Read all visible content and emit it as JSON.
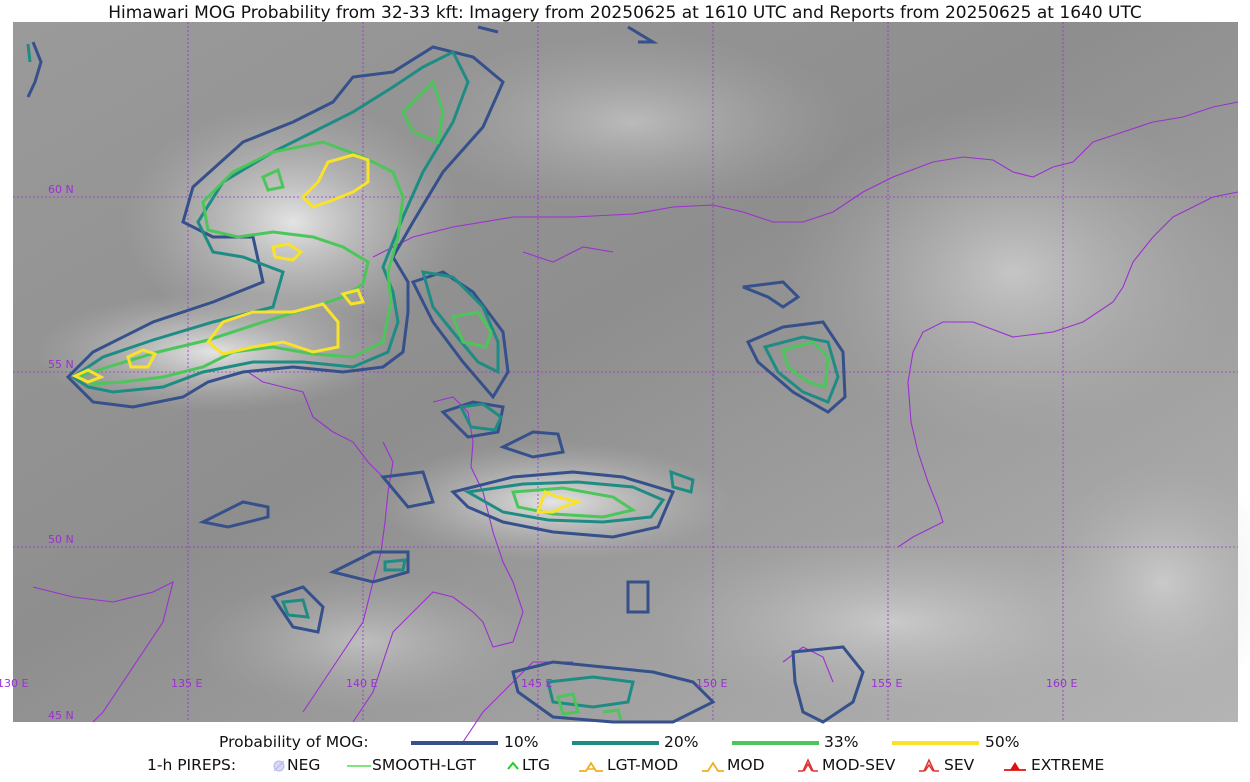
{
  "title": "Himawari MOG Probability from 32-33 kft: Imagery from 20250625 at 1610 UTC and Reports from 20250625 at 1640 UTC",
  "map": {
    "lat_labels": [
      "60 N",
      "55 N",
      "50 N",
      "45 N"
    ],
    "lon_labels": [
      "130 E",
      "135 E",
      "140 E",
      "145 E",
      "150 E",
      "155 E",
      "160 E"
    ],
    "colors": {
      "coast": "#9b30d0",
      "grid": "#9b30d0",
      "p10": "#35508a",
      "p20": "#1f8c84",
      "p33": "#4cc65a",
      "p50": "#f9e22a"
    }
  },
  "legend": {
    "probability_label": "Probability of MOG:",
    "levels": [
      {
        "label": "10%",
        "color": "#35508a"
      },
      {
        "label": "20%",
        "color": "#1f8c84"
      },
      {
        "label": "33%",
        "color": "#4cc65a"
      },
      {
        "label": "50%",
        "color": "#f9e22a"
      }
    ],
    "pireps_label": "1-h PIREPS:",
    "pireps": [
      {
        "label": "NEG",
        "color": "#c8c8f0",
        "icon": "neg-icon"
      },
      {
        "label": "SMOOTH-LGT",
        "color": "#55dd55",
        "icon": "smooth-lgt-icon"
      },
      {
        "label": "LTG",
        "color": "#22cc22",
        "icon": "ltg-icon"
      },
      {
        "label": "LGT-MOD",
        "color": "#f0b020",
        "icon": "lgt-mod-icon"
      },
      {
        "label": "MOD",
        "color": "#f0b020",
        "icon": "mod-icon"
      },
      {
        "label": "MOD-SEV",
        "color": "#e03030",
        "icon": "mod-sev-icon"
      },
      {
        "label": "SEV",
        "color": "#e03030",
        "icon": "sev-icon"
      },
      {
        "label": "EXTREME",
        "color": "#e01010",
        "icon": "extreme-icon"
      }
    ]
  }
}
